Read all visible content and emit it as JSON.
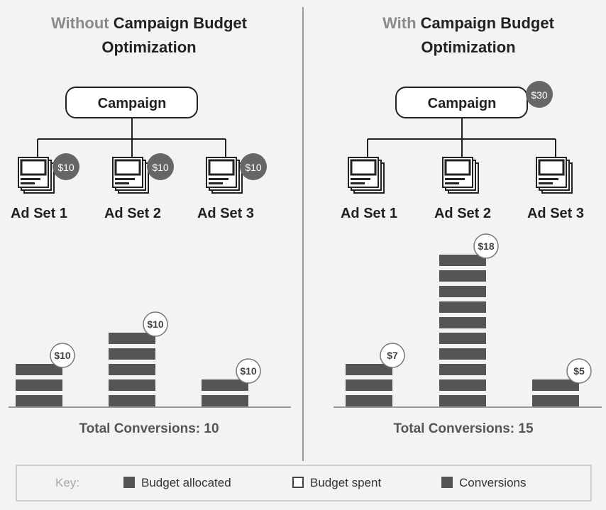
{
  "left_panel": {
    "title_prefix": "Without",
    "title_main": "Campaign Budget",
    "title_line2": "Optimization",
    "campaign_label": "Campaign",
    "ad_sets": [
      {
        "label": "Ad Set 1",
        "budget_badge": "$10"
      },
      {
        "label": "Ad Set 2",
        "budget_badge": "$10"
      },
      {
        "label": "Ad Set 3",
        "budget_badge": "$10"
      }
    ],
    "total_conversions": "Total Conversions: 10"
  },
  "right_panel": {
    "title_prefix": "With",
    "title_main": "Campaign Budget",
    "title_line2": "Optimization",
    "campaign_label": "Campaign",
    "campaign_badge": "$30",
    "ad_sets": [
      {
        "label": "Ad Set 1"
      },
      {
        "label": "Ad Set 2"
      },
      {
        "label": "Ad Set 3"
      }
    ],
    "total_conversions": "Total Conversions: 15"
  },
  "chart_data": [
    {
      "type": "bar",
      "categories": [
        "Ad Set 1",
        "Ad Set 2",
        "Ad Set 3"
      ],
      "series": [
        {
          "values": [
            3,
            5,
            2
          ]
        }
      ],
      "data_labels": [
        "$10",
        "$10",
        "$10"
      ]
    },
    {
      "type": "bar",
      "categories": [
        "Ad Set 1",
        "Ad Set 2",
        "Ad Set 3"
      ],
      "series": [
        {
          "values": [
            3,
            10,
            2
          ]
        }
      ],
      "data_labels": [
        "$7",
        "$18",
        "$5"
      ]
    }
  ],
  "key": {
    "label": "Key:",
    "items": [
      {
        "label": "Budget allocated",
        "swatch": "filled"
      },
      {
        "label": "Budget spent",
        "swatch": "empty"
      },
      {
        "label": "Conversions",
        "swatch": "filled"
      }
    ]
  },
  "colors": {
    "bar": "#555555",
    "badge": "#666666",
    "muted_text": "#8a8a8a",
    "divider": "#9a9a9a"
  }
}
